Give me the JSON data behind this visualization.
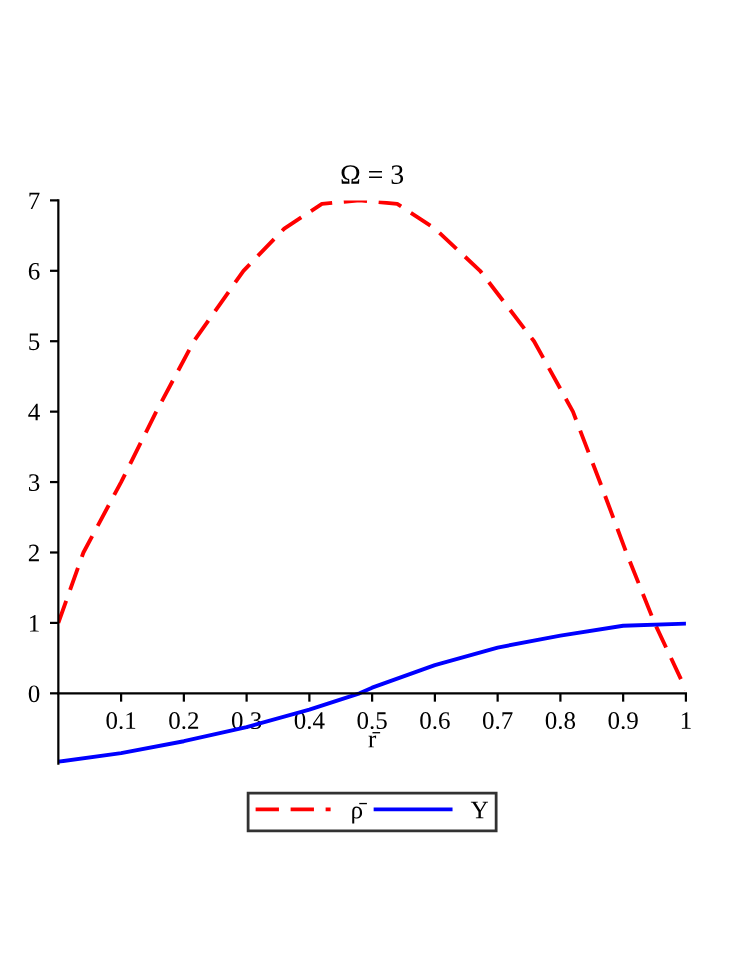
{
  "chart_data": {
    "type": "line",
    "title": "Ω = 3",
    "xlabel": "r̄",
    "series": [
      {
        "name": "ρ̄",
        "color": "#ff0000",
        "line_style": "dashed",
        "x": [
          0,
          0.04,
          0.1,
          0.156,
          0.216,
          0.295,
          0.36,
          0.42,
          0.48,
          0.54,
          0.6,
          0.672,
          0.758,
          0.82,
          0.863,
          0.905,
          0.95,
          1
        ],
        "values": [
          1,
          2,
          3,
          4,
          5,
          6,
          6.6,
          6.95,
          7,
          6.95,
          6.6,
          6,
          5,
          4,
          3,
          2,
          1,
          0.05
        ]
      },
      {
        "name": "Y",
        "color": "#0000ff",
        "line_style": "solid",
        "x": [
          0,
          0.1,
          0.2,
          0.3,
          0.4,
          0.48,
          0.5,
          0.6,
          0.7,
          0.8,
          0.9,
          1
        ],
        "values": [
          -0.97,
          -0.85,
          -0.68,
          -0.48,
          -0.23,
          0,
          0.08,
          0.4,
          0.65,
          0.82,
          0.96,
          0.99
        ]
      }
    ],
    "xlim": [
      0,
      1
    ],
    "ylim": [
      -1,
      7
    ],
    "xticks": [
      0.1,
      0.2,
      0.3,
      0.4,
      0.5,
      0.6,
      0.7,
      0.8,
      0.9,
      1
    ],
    "yticks": [
      0,
      1,
      2,
      3,
      4,
      5,
      6,
      7
    ],
    "grid": false,
    "legend": "bottom"
  }
}
